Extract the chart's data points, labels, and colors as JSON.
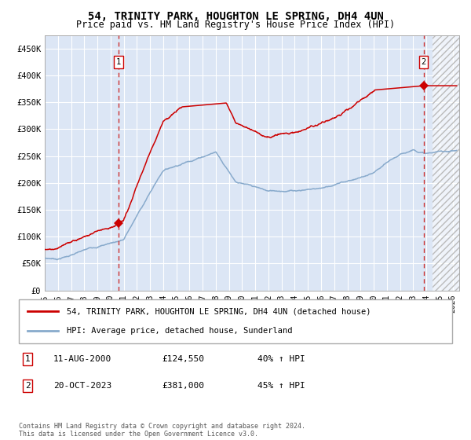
{
  "title": "54, TRINITY PARK, HOUGHTON LE SPRING, DH4 4UN",
  "subtitle": "Price paid vs. HM Land Registry's House Price Index (HPI)",
  "ylim": [
    0,
    475000
  ],
  "yticks": [
    0,
    50000,
    100000,
    150000,
    200000,
    250000,
    300000,
    350000,
    400000,
    450000
  ],
  "ytick_labels": [
    "£0",
    "£50K",
    "£100K",
    "£150K",
    "£200K",
    "£250K",
    "£300K",
    "£350K",
    "£400K",
    "£450K"
  ],
  "sale1_date": 2000.61,
  "sale1_price": 124550,
  "sale2_date": 2023.8,
  "sale2_price": 381000,
  "sale1_label": "1",
  "sale2_label": "2",
  "sale1_date_str": "11-AUG-2000",
  "sale2_date_str": "20-OCT-2023",
  "sale1_price_str": "£124,550",
  "sale2_price_str": "£381,000",
  "sale1_hpi_str": "40% ↑ HPI",
  "sale2_hpi_str": "45% ↑ HPI",
  "line1_color": "#cc0000",
  "line2_color": "#88aacc",
  "legend1": "54, TRINITY PARK, HOUGHTON LE SPRING, DH4 4UN (detached house)",
  "legend2": "HPI: Average price, detached house, Sunderland",
  "copyright": "Contains HM Land Registry data © Crown copyright and database right 2024.\nThis data is licensed under the Open Government Licence v3.0.",
  "bg_color": "#dce6f5",
  "grid_color": "#ffffff",
  "xmin": 1995.0,
  "xmax": 2026.5,
  "future_start": 2024.5
}
